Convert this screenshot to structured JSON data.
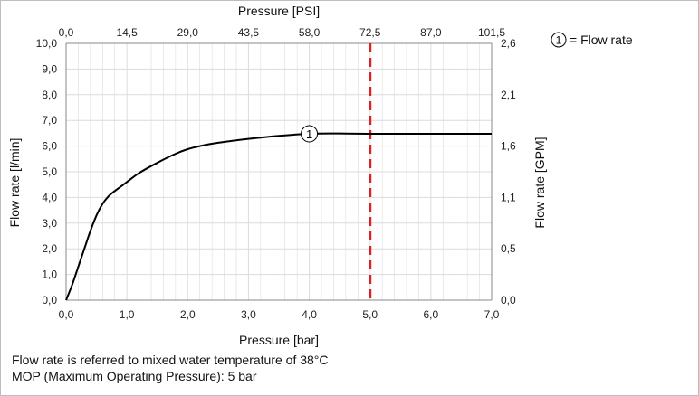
{
  "chart_data": {
    "type": "line",
    "title": "",
    "xlabel": "Pressure [bar]",
    "ylabel": "Flow rate [l/min]",
    "x2label": "Pressure [PSI]",
    "y2label": "Flow rate [GPM]",
    "xlim": [
      0,
      7
    ],
    "ylim": [
      0,
      10
    ],
    "x_ticks": [
      "0,0",
      "1,0",
      "2,0",
      "3,0",
      "4,0",
      "5,0",
      "6,0",
      "7,0"
    ],
    "y_ticks": [
      "0,0",
      "1,0",
      "2,0",
      "3,0",
      "4,0",
      "5,0",
      "6,0",
      "7,0",
      "8,0",
      "9,0",
      "10,0"
    ],
    "x2_ticks": [
      "0,0",
      "14,5",
      "29,0",
      "43,5",
      "58,0",
      "72,5",
      "87,0",
      "101,5"
    ],
    "y2_ticks": [
      "0,0",
      "0,5",
      "1,1",
      "1,6",
      "2,1",
      "2,6"
    ],
    "grid": true,
    "series": [
      {
        "name": "Flow rate",
        "marker_label": "1",
        "marker_x": 4.0,
        "color": "#000000",
        "x": [
          0.0,
          0.1,
          0.2,
          0.3,
          0.4,
          0.5,
          0.6,
          0.7,
          0.8,
          1.0,
          1.2,
          1.5,
          1.8,
          2.0,
          2.2,
          2.5,
          3.0,
          3.5,
          4.0,
          4.5,
          5.0,
          5.5,
          6.0,
          6.5,
          7.0
        ],
        "y": [
          0.0,
          0.6,
          1.3,
          2.0,
          2.7,
          3.3,
          3.75,
          4.05,
          4.25,
          4.6,
          4.95,
          5.35,
          5.7,
          5.88,
          6.0,
          6.13,
          6.28,
          6.4,
          6.48,
          6.49,
          6.48,
          6.48,
          6.48,
          6.48,
          6.48
        ]
      }
    ],
    "annotations": [
      {
        "type": "vline",
        "x": 5.0,
        "style": "dashed",
        "color": "#e02020"
      }
    ],
    "legend": {
      "placement": "top-right",
      "marker": "1",
      "text": "= Flow rate"
    }
  },
  "notes": {
    "line1": "Flow rate is referred to mixed water temperature of 38°C",
    "line2": "MOP (Maximum Operating Pressure): 5 bar"
  },
  "colors": {
    "grid": "#dcdcdc",
    "axis": "#888888",
    "curve": "#000000",
    "mop_line": "#e02020"
  }
}
